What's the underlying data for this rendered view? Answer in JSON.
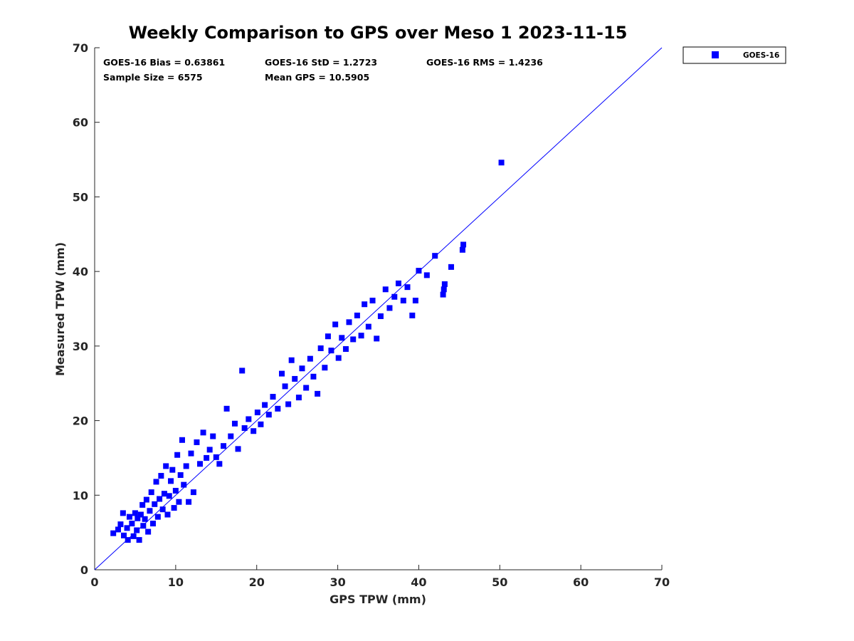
{
  "chart_data": {
    "type": "scatter",
    "title": "Weekly Comparison to GPS over Meso 1 2023-11-15",
    "xlabel": "GPS TPW (mm)",
    "ylabel": "Measured TPW (mm)",
    "xlim": [
      0,
      70
    ],
    "ylim": [
      0,
      70
    ],
    "xticks": [
      "0",
      "10",
      "20",
      "30",
      "40",
      "50",
      "60",
      "70"
    ],
    "yticks": [
      "0",
      "10",
      "20",
      "30",
      "40",
      "50",
      "60",
      "70"
    ],
    "grid": false,
    "legend": {
      "position": "outside-top-right",
      "entries": [
        "GOES-16"
      ]
    },
    "reference_line": {
      "from": [
        0,
        0
      ],
      "to": [
        70,
        70
      ],
      "color": "#0000ff"
    },
    "stats": {
      "bias": "GOES-16 Bias = 0.63861",
      "std": "GOES-16 StD = 1.2723",
      "rms": "GOES-16 RMS = 1.4236",
      "sample_size": "Sample Size = 6575",
      "mean_gps": "Mean GPS = 10.5905"
    },
    "series": [
      {
        "name": "GOES-16",
        "color": "#0000ff",
        "marker": "square",
        "points": [
          [
            2.3,
            4.9
          ],
          [
            2.9,
            5.4
          ],
          [
            3.2,
            6.1
          ],
          [
            3.5,
            7.6
          ],
          [
            3.6,
            4.6
          ],
          [
            4.0,
            5.6
          ],
          [
            4.1,
            4.0
          ],
          [
            4.3,
            7.1
          ],
          [
            4.6,
            6.2
          ],
          [
            4.8,
            4.5
          ],
          [
            5.0,
            7.6
          ],
          [
            5.2,
            5.3
          ],
          [
            5.3,
            6.9
          ],
          [
            5.5,
            4.0
          ],
          [
            5.7,
            7.4
          ],
          [
            5.9,
            8.7
          ],
          [
            6.0,
            5.9
          ],
          [
            6.2,
            6.8
          ],
          [
            6.4,
            9.4
          ],
          [
            6.6,
            5.1
          ],
          [
            6.8,
            7.9
          ],
          [
            7.0,
            10.4
          ],
          [
            7.2,
            6.2
          ],
          [
            7.4,
            8.8
          ],
          [
            7.6,
            11.8
          ],
          [
            7.8,
            7.1
          ],
          [
            8.0,
            9.5
          ],
          [
            8.2,
            12.6
          ],
          [
            8.4,
            8.1
          ],
          [
            8.6,
            10.2
          ],
          [
            8.8,
            13.9
          ],
          [
            9.0,
            7.4
          ],
          [
            9.2,
            9.9
          ],
          [
            9.4,
            11.9
          ],
          [
            9.6,
            13.4
          ],
          [
            9.8,
            8.3
          ],
          [
            10.0,
            10.6
          ],
          [
            10.2,
            15.4
          ],
          [
            10.4,
            9.1
          ],
          [
            10.6,
            12.7
          ],
          [
            10.8,
            17.4
          ],
          [
            11.0,
            11.4
          ],
          [
            11.3,
            13.9
          ],
          [
            11.6,
            9.1
          ],
          [
            11.9,
            15.6
          ],
          [
            12.2,
            10.4
          ],
          [
            12.6,
            17.1
          ],
          [
            13.0,
            14.2
          ],
          [
            13.4,
            18.4
          ],
          [
            13.8,
            15.0
          ],
          [
            14.2,
            16.1
          ],
          [
            14.6,
            17.9
          ],
          [
            15.0,
            15.1
          ],
          [
            15.4,
            14.2
          ],
          [
            15.9,
            16.6
          ],
          [
            16.3,
            21.6
          ],
          [
            16.8,
            17.9
          ],
          [
            17.3,
            19.6
          ],
          [
            17.7,
            16.2
          ],
          [
            18.2,
            26.7
          ],
          [
            18.5,
            19.0
          ],
          [
            19.0,
            20.2
          ],
          [
            19.6,
            18.6
          ],
          [
            20.1,
            21.1
          ],
          [
            20.5,
            19.5
          ],
          [
            21.0,
            22.1
          ],
          [
            21.5,
            20.8
          ],
          [
            22.0,
            23.2
          ],
          [
            22.6,
            21.6
          ],
          [
            23.1,
            26.3
          ],
          [
            23.5,
            24.6
          ],
          [
            23.9,
            22.2
          ],
          [
            24.3,
            28.1
          ],
          [
            24.7,
            25.6
          ],
          [
            25.2,
            23.1
          ],
          [
            25.6,
            27.0
          ],
          [
            26.1,
            24.4
          ],
          [
            26.6,
            28.3
          ],
          [
            27.0,
            25.9
          ],
          [
            27.5,
            23.6
          ],
          [
            27.9,
            29.7
          ],
          [
            28.4,
            27.1
          ],
          [
            28.8,
            31.3
          ],
          [
            29.2,
            29.4
          ],
          [
            29.7,
            32.9
          ],
          [
            30.1,
            28.4
          ],
          [
            30.5,
            31.1
          ],
          [
            31.0,
            29.6
          ],
          [
            31.4,
            33.2
          ],
          [
            31.9,
            30.9
          ],
          [
            32.4,
            34.1
          ],
          [
            32.9,
            31.4
          ],
          [
            33.3,
            35.6
          ],
          [
            33.8,
            32.6
          ],
          [
            34.3,
            36.1
          ],
          [
            34.8,
            31.0
          ],
          [
            35.3,
            34.0
          ],
          [
            35.9,
            37.6
          ],
          [
            36.4,
            35.1
          ],
          [
            37.0,
            36.6
          ],
          [
            37.5,
            38.4
          ],
          [
            38.1,
            36.1
          ],
          [
            38.6,
            37.9
          ],
          [
            39.2,
            34.1
          ],
          [
            39.6,
            36.1
          ],
          [
            40.0,
            40.1
          ],
          [
            41.0,
            39.5
          ],
          [
            42.0,
            42.1
          ],
          [
            43.0,
            36.9
          ],
          [
            43.1,
            37.6
          ],
          [
            43.2,
            38.3
          ],
          [
            44.0,
            40.6
          ],
          [
            45.4,
            42.9
          ],
          [
            45.5,
            43.6
          ],
          [
            50.2,
            54.6
          ]
        ]
      }
    ]
  }
}
